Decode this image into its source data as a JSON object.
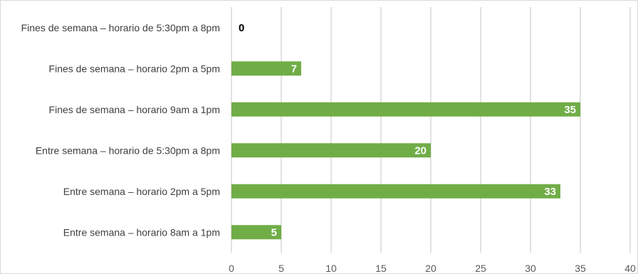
{
  "chart_data": {
    "type": "bar",
    "orientation": "horizontal",
    "categories": [
      "Fines de semana – horario de 5:30pm a 8pm",
      "Fines de semana – horario 2pm a 5pm",
      "Fines de semana – horario 9am a 1pm",
      "Entre semana – horario de 5:30pm a 8pm",
      "Entre semana – horario 2pm a 5pm",
      "Entre semana – horario 8am a 1pm"
    ],
    "values": [
      0,
      7,
      35,
      20,
      33,
      5
    ],
    "xlim": [
      0,
      40
    ],
    "xticks": [
      0,
      5,
      10,
      15,
      20,
      25,
      30,
      35,
      40
    ],
    "grid": "vertical",
    "bar_color": "#70ad47",
    "gridline_color": "#d9d9d9",
    "title": "",
    "xlabel": "",
    "ylabel": ""
  }
}
